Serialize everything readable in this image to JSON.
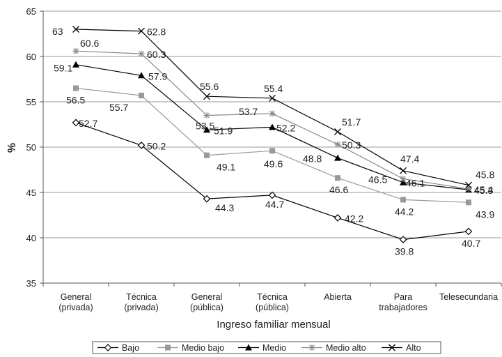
{
  "chart_data": {
    "type": "line",
    "categories": [
      "General\n(privada)",
      "Técnica\n(privada)",
      "General\n(pública)",
      "Técnica\n(pública)",
      "Abierta",
      "Para\ntrabajadores",
      "Telesecundaria"
    ],
    "ylabel": "%",
    "xlabel": "Ingreso familiar mensual",
    "ylim": [
      35,
      65
    ],
    "yticks": [
      35,
      40,
      45,
      50,
      55,
      60,
      65
    ],
    "grid": true,
    "legend_position": "bottom",
    "series": [
      {
        "name": "Bajo",
        "marker": "diamond-open",
        "color": "#000000",
        "values": [
          52.7,
          50.2,
          44.3,
          44.7,
          42.2,
          39.8,
          40.7
        ]
      },
      {
        "name": "Medio bajo",
        "marker": "square",
        "color": "#999999",
        "values": [
          56.5,
          55.7,
          49.1,
          49.6,
          46.6,
          44.2,
          43.9
        ]
      },
      {
        "name": "Medio",
        "marker": "triangle",
        "color": "#000000",
        "values": [
          59.1,
          57.9,
          51.9,
          52.2,
          48.8,
          46.1,
          45.3
        ]
      },
      {
        "name": "Medio alto",
        "marker": "asterisk",
        "color": "#888888",
        "values": [
          60.6,
          60.3,
          53.5,
          53.7,
          50.3,
          46.5,
          45.4
        ]
      },
      {
        "name": "Alto",
        "marker": "x",
        "color": "#000000",
        "values": [
          63,
          62.8,
          55.6,
          55.4,
          51.7,
          47.4,
          45.8
        ]
      }
    ],
    "data_labels": [
      [
        "52.7",
        "50.2",
        "44.3",
        "44.7",
        "42.2",
        "39.8",
        "40.7"
      ],
      [
        "56.5",
        "55.7",
        "49.1",
        "49.6",
        "46.6",
        "44.2",
        "43.9"
      ],
      [
        "59.1",
        "57.9",
        "51.9",
        "52.2",
        "48.8",
        "46.1",
        "45.3"
      ],
      [
        "60.6",
        "60.3",
        "53.5",
        "53.7",
        "50.3",
        "46.5",
        "45.4"
      ],
      [
        "63",
        "62.8",
        "55.6",
        "55.4",
        "51.7",
        "47.4",
        "45.8"
      ]
    ]
  }
}
